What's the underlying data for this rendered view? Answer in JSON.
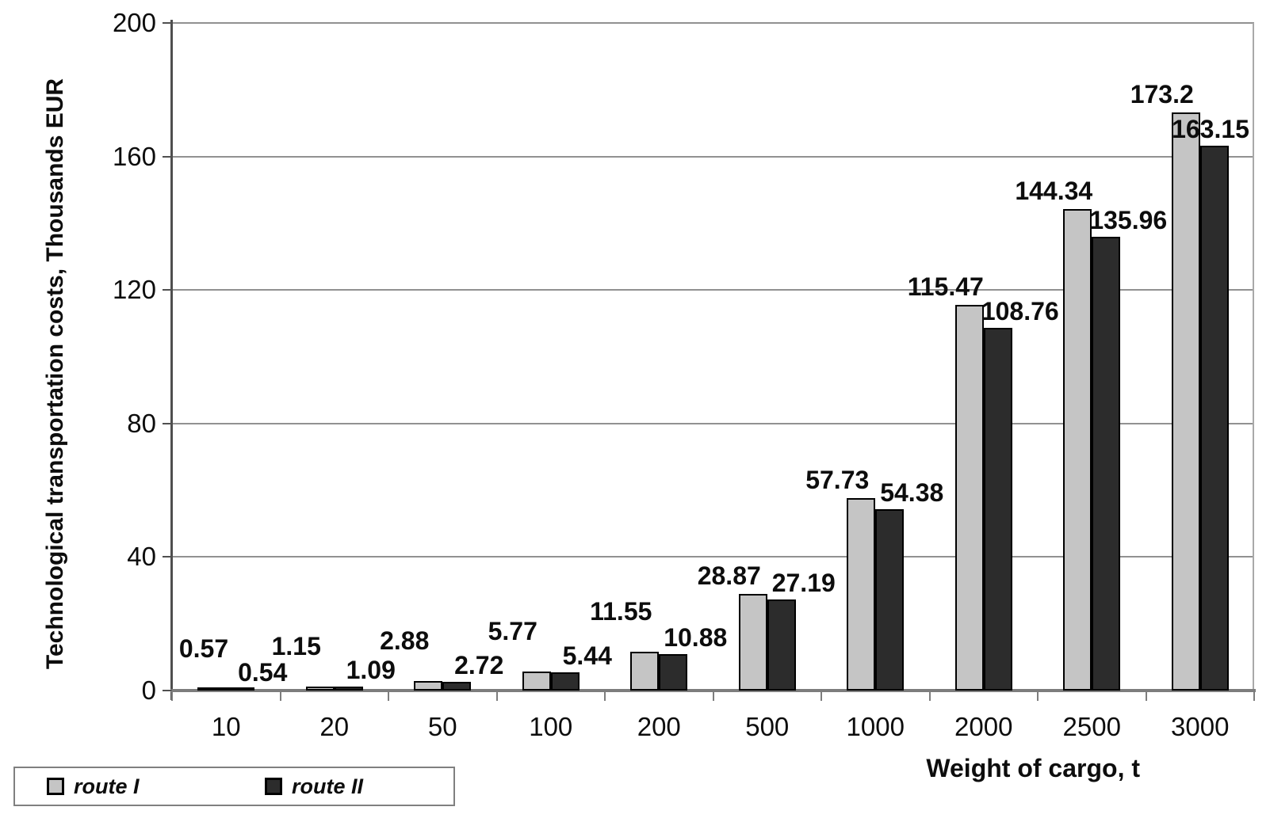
{
  "chart_data": {
    "type": "bar",
    "title": "",
    "xlabel": "Weight of cargo, t",
    "ylabel": "Technological transportation costs, Thousands EUR",
    "categories": [
      "10",
      "20",
      "50",
      "100",
      "200",
      "500",
      "1000",
      "2000",
      "2500",
      "3000"
    ],
    "series": [
      {
        "name": "route I",
        "color": "#c5c5c5",
        "values": [
          0.57,
          1.15,
          2.88,
          5.77,
          11.55,
          28.87,
          57.73,
          115.47,
          144.34,
          173.2
        ],
        "labels": [
          "0.57",
          "1.15",
          "2.88",
          "5.77",
          "11.55",
          "28.87",
          "57.73",
          "115.47",
          "144.34",
          "173.2"
        ]
      },
      {
        "name": "route II",
        "color": "#2c2c2c",
        "values": [
          0.54,
          1.09,
          2.72,
          5.44,
          10.88,
          27.19,
          54.38,
          108.76,
          135.96,
          163.15
        ],
        "labels": [
          "0.54",
          "1.09",
          "2.72",
          "5.44",
          "10.88",
          "27.19",
          "54.38",
          "108.76",
          "135.96",
          "163.15"
        ]
      }
    ],
    "y_ticks": [
      0,
      40,
      80,
      120,
      160,
      200
    ],
    "ylim": [
      0,
      200
    ],
    "grid": true,
    "legend_position": "bottom-left",
    "bar_border_color": "#000000",
    "text_color": "#0d0d0d"
  }
}
